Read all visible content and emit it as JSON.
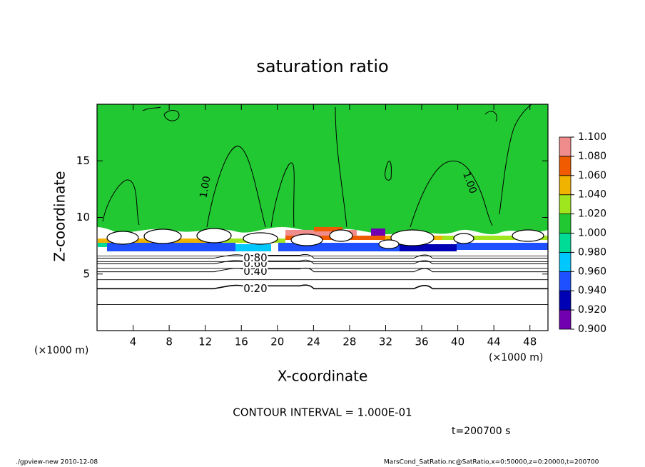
{
  "chart_data": {
    "type": "contour",
    "title": "saturation ratio",
    "x_label": "X-coordinate",
    "y_label": "Z-coordinate",
    "x_unit": "(×1000 m)",
    "xlim": [
      0,
      50
    ],
    "xticks": [
      4,
      8,
      12,
      16,
      20,
      24,
      28,
      32,
      36,
      40,
      44,
      48
    ],
    "ylim": [
      0,
      20
    ],
    "yticks": [
      5,
      10,
      15
    ],
    "levels": [
      {
        "value": 0.9,
        "label": "0.900"
      },
      {
        "value": 0.92,
        "label": "0.920"
      },
      {
        "value": 0.94,
        "label": "0.940"
      },
      {
        "value": 0.96,
        "label": "0.960"
      },
      {
        "value": 0.98,
        "label": "0.980"
      },
      {
        "value": 1.0,
        "label": "1.000"
      },
      {
        "value": 1.02,
        "label": "1.020"
      },
      {
        "value": 1.04,
        "label": "1.040"
      },
      {
        "value": 1.06,
        "label": "1.060"
      },
      {
        "value": 1.08,
        "label": "1.080"
      },
      {
        "value": 1.1,
        "label": "1.100"
      }
    ],
    "colors": [
      "#7000b0",
      "#0000b4",
      "#1e50ff",
      "#00c8ff",
      "#00dc96",
      "#22c832",
      "#a0e61e",
      "#f0b400",
      "#f05a00",
      "#f08c8c"
    ],
    "contour_labels": [
      {
        "value": 0.2,
        "label": "0.20"
      },
      {
        "value": 0.4,
        "label": "0.40"
      },
      {
        "value": 0.6,
        "label": "0.60"
      },
      {
        "value": 0.8,
        "label": "0.80"
      },
      {
        "value": 1.0,
        "label": "1.00"
      }
    ],
    "contour_interval_text": "CONTOUR INTERVAL = 1.000E-01",
    "time_text": "t=200700 s",
    "footer_left": "./gpview-new  2010-12-08",
    "footer_right": "MarsCond_SatRatio.nc@SatRatio,x=0:50000,z=0:20000,t=200700"
  }
}
